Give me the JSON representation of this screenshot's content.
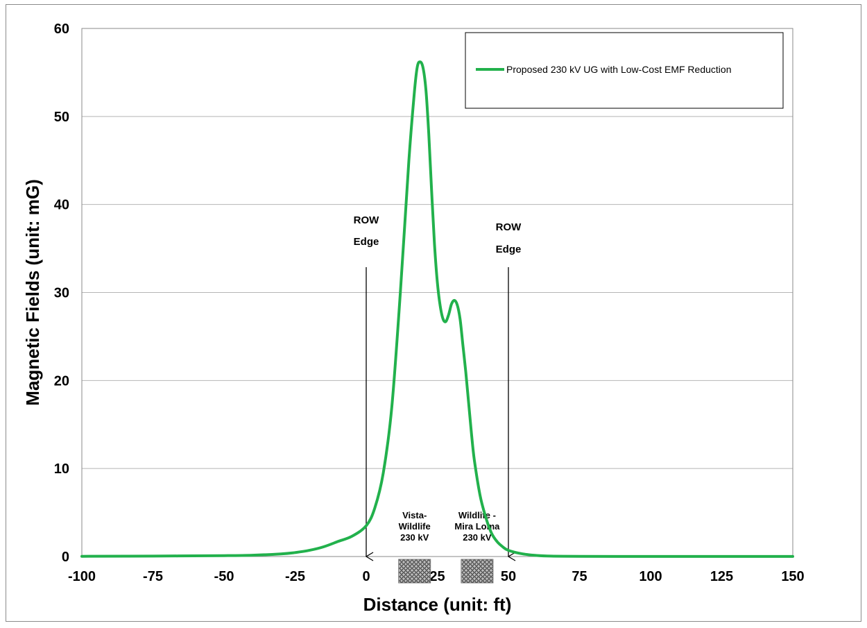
{
  "chart_data": {
    "type": "line",
    "title": "",
    "xlabel": "Distance (unit: ft)",
    "ylabel": "Magnetic Fields (unit: mG)",
    "xlim": [
      -100,
      150
    ],
    "ylim": [
      0,
      60
    ],
    "xticks": [
      -100,
      -75,
      -50,
      -25,
      0,
      25,
      50,
      75,
      100,
      125,
      150
    ],
    "yticks": [
      0,
      10,
      20,
      30,
      40,
      50,
      60
    ],
    "grid": "horizontal",
    "legend_position": "top-right",
    "series": [
      {
        "name": "Proposed 230 kV UG with Low-Cost EMF Reduction",
        "color": "#22b14c",
        "x": [
          -100,
          -75,
          -50,
          -40,
          -30,
          -25,
          -20,
          -15,
          -10,
          -5,
          0,
          3,
          6,
          9,
          12,
          15,
          17,
          18,
          19,
          20,
          21,
          22,
          23,
          24,
          25,
          26,
          27,
          28,
          29,
          30,
          31,
          32,
          33,
          34,
          35,
          36,
          37,
          38,
          40,
          42,
          44,
          46,
          48,
          50,
          55,
          60,
          65,
          75,
          100,
          125,
          150
        ],
        "y": [
          0.02,
          0.05,
          0.1,
          0.15,
          0.3,
          0.45,
          0.7,
          1.1,
          1.7,
          2.3,
          3.5,
          5.5,
          9.5,
          17,
          30,
          45,
          53,
          55.7,
          56.2,
          55.5,
          53,
          48,
          41.5,
          35.5,
          31.2,
          28.5,
          27,
          26.7,
          27.5,
          28.7,
          29.1,
          28.6,
          27,
          24,
          21,
          17.5,
          14,
          11,
          7,
          4.5,
          2.7,
          1.7,
          1.1,
          0.7,
          0.3,
          0.12,
          0.05,
          0.02,
          0.01,
          0.01,
          0.01
        ]
      }
    ],
    "annotations": [
      {
        "id": "row_left",
        "lines": [
          "ROW",
          "Edge"
        ],
        "x": 0
      },
      {
        "id": "row_right",
        "lines": [
          "ROW",
          "Edge"
        ],
        "x": 50
      },
      {
        "id": "cable_left",
        "lines": [
          "Vista-",
          "Wildlife",
          "230 kV"
        ],
        "x": 17
      },
      {
        "id": "cable_right",
        "lines": [
          "Wildlife -",
          "Mira Loma",
          "230 kV"
        ],
        "x": 39
      }
    ]
  }
}
